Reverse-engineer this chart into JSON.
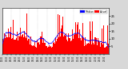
{
  "n_points": 1440,
  "background_color": "#d8d8d8",
  "plot_bg_color": "#ffffff",
  "bar_color": "#ff0000",
  "median_color": "#0000ff",
  "ylim": [
    0,
    30
  ],
  "ytick_values": [
    5,
    10,
    15,
    20,
    25
  ],
  "legend_actual_label": "Actual",
  "legend_median_label": "Median",
  "seed": 42,
  "vgrid_interval": 120,
  "vgrid_color": "#aaaaaa",
  "vgrid_style": ":"
}
